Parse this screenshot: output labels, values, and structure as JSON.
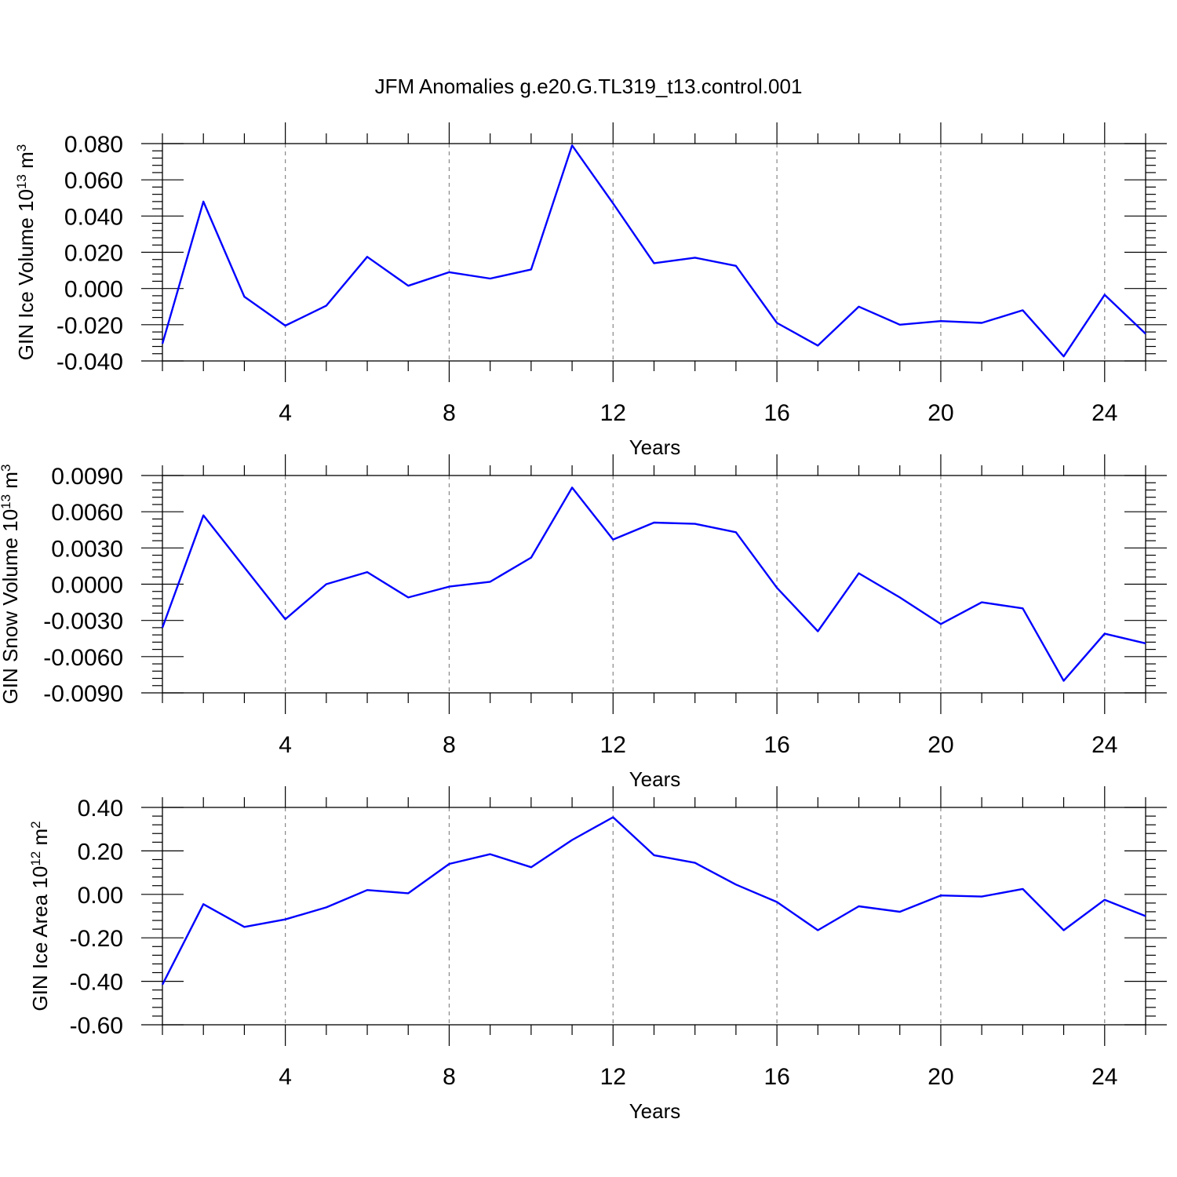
{
  "title": "JFM Anomalies g.e20.G.TL319_t13.control.001",
  "colors": {
    "series": "#0000ff",
    "axis": "#000000",
    "grid": "#888888"
  },
  "chart_data": [
    {
      "type": "line",
      "ylabel": {
        "text": "GIN Ice Volume 10",
        "sup": "13",
        "unit": " m",
        "unit_sup": "3"
      },
      "xlabel": "Years",
      "xlim": [
        1,
        25
      ],
      "ylim": [
        -0.04,
        0.08
      ],
      "x_ticks": [
        "4",
        "8",
        "12",
        "16",
        "20",
        "24"
      ],
      "y_ticks": [
        "0.080",
        "0.060",
        "0.040",
        "0.020",
        "0.000",
        "-0.020",
        "-0.040"
      ],
      "x": [
        1,
        2,
        3,
        4,
        5,
        6,
        7,
        8,
        9,
        10,
        11,
        12,
        13,
        14,
        15,
        16,
        17,
        18,
        19,
        20,
        21,
        22,
        23,
        24,
        25
      ],
      "values": [
        -0.0305,
        0.048,
        -0.0045,
        -0.0205,
        -0.0095,
        0.0175,
        0.0015,
        0.009,
        0.0055,
        0.0105,
        0.079,
        0.047,
        0.014,
        0.017,
        0.0125,
        -0.019,
        -0.0315,
        -0.01,
        -0.02,
        -0.018,
        -0.019,
        -0.012,
        -0.0375,
        -0.0035,
        -0.025
      ]
    },
    {
      "type": "line",
      "ylabel": {
        "text": "GIN Snow Volume 10",
        "sup": "13",
        "unit": " m",
        "unit_sup": "3"
      },
      "xlabel": "Years",
      "xlim": [
        1,
        25
      ],
      "ylim": [
        -0.009,
        0.009
      ],
      "x_ticks": [
        "4",
        "8",
        "12",
        "16",
        "20",
        "24"
      ],
      "y_ticks": [
        "0.0090",
        "0.0060",
        "0.0030",
        "0.0000",
        "-0.0030",
        "-0.0060",
        "-0.0090"
      ],
      "x": [
        1,
        2,
        3,
        4,
        5,
        6,
        7,
        8,
        9,
        10,
        11,
        12,
        13,
        14,
        15,
        16,
        17,
        18,
        19,
        20,
        21,
        22,
        23,
        24,
        25
      ],
      "values": [
        -0.0036,
        0.0057,
        0.0014,
        -0.0029,
        0.0,
        0.001,
        -0.0011,
        -0.0002,
        0.0002,
        0.0022,
        0.008,
        0.0037,
        0.0051,
        0.005,
        0.0043,
        -0.0003,
        -0.0039,
        0.0009,
        -0.0011,
        -0.0033,
        -0.0015,
        -0.002,
        -0.008,
        -0.0041,
        -0.0049
      ]
    },
    {
      "type": "line",
      "ylabel": {
        "text": "GIN Ice Area 10",
        "sup": "12",
        "unit": " m",
        "unit_sup": "2"
      },
      "xlabel": "Years",
      "xlim": [
        1,
        25
      ],
      "ylim": [
        -0.6,
        0.4
      ],
      "x_ticks": [
        "4",
        "8",
        "12",
        "16",
        "20",
        "24"
      ],
      "y_ticks": [
        "0.40",
        "0.20",
        "0.00",
        "-0.20",
        "-0.40",
        "-0.60"
      ],
      "x": [
        1,
        2,
        3,
        4,
        5,
        6,
        7,
        8,
        9,
        10,
        11,
        12,
        13,
        14,
        15,
        16,
        17,
        18,
        19,
        20,
        21,
        22,
        23,
        24,
        25
      ],
      "values": [
        -0.415,
        -0.045,
        -0.15,
        -0.115,
        -0.06,
        0.02,
        0.005,
        0.14,
        0.185,
        0.125,
        0.25,
        0.355,
        0.18,
        0.145,
        0.045,
        -0.035,
        -0.165,
        -0.055,
        -0.08,
        -0.005,
        -0.01,
        0.025,
        -0.165,
        -0.025,
        -0.1
      ]
    }
  ]
}
